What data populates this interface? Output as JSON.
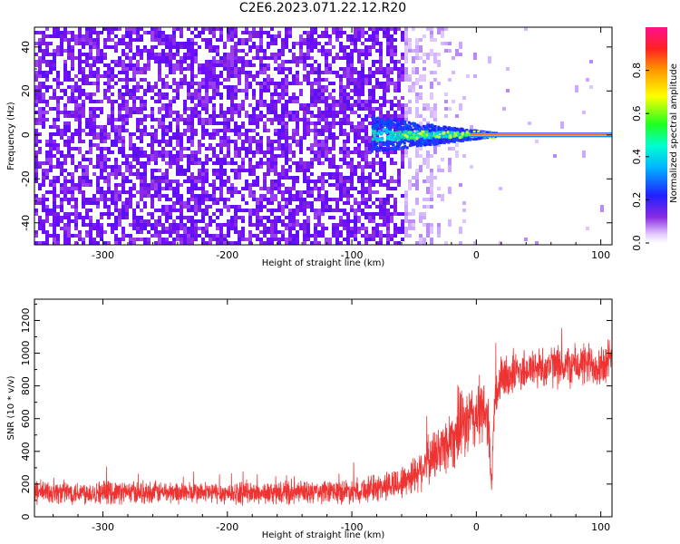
{
  "figure_title": "C2E6.2023.071.22.12.R20",
  "colors": {
    "snr_line": "#ee3333",
    "spectrogram_noise": "#7a1fe0",
    "carrier": "#e8f040"
  },
  "chart_data": [
    {
      "type": "heatmap",
      "title": "C2E6.2023.071.22.12.R20",
      "xlabel": "Height of straight line (km)",
      "ylabel": "Frequency (Hz)",
      "xlim": [
        -355,
        109
      ],
      "ylim": [
        -50,
        49
      ],
      "x_ticks": [
        -300,
        -200,
        -100,
        0,
        100
      ],
      "y_ticks": [
        -40,
        -20,
        0,
        20,
        40
      ],
      "carrier_frequency_hz": 0,
      "carrier_start_km": -80,
      "colorbar": {
        "label": "Normalized spectral amplitude",
        "range": [
          0.0,
          1.0
        ],
        "ticks": [
          "0.0",
          "0.2",
          "0.4",
          "0.6",
          "0.8"
        ],
        "colormap": "rainbow (white-violet-blue-cyan-green-yellow-orange-red-magenta)"
      },
      "grid": false
    },
    {
      "type": "line",
      "xlabel": "Height of straight line (km)",
      "ylabel": "SNR (10 * v/v)",
      "xlim": [
        -355,
        109
      ],
      "ylim": [
        0,
        1330
      ],
      "x_ticks": [
        -300,
        -200,
        -100,
        0,
        100
      ],
      "y_ticks": [
        0,
        200,
        400,
        600,
        800,
        1000,
        1200
      ],
      "series": [
        {
          "x": [
            -355,
            -300,
            -250,
            -200,
            -150,
            -120,
            -100,
            -80,
            -60,
            -50,
            -40,
            -30,
            -20,
            -10,
            0,
            5,
            10,
            12,
            15,
            20,
            30,
            40,
            50,
            60,
            70,
            80,
            90,
            100,
            109
          ],
          "y": [
            150,
            150,
            150,
            145,
            145,
            150,
            160,
            175,
            210,
            260,
            330,
            400,
            480,
            560,
            620,
            640,
            600,
            150,
            720,
            840,
            880,
            900,
            910,
            920,
            920,
            925,
            930,
            935,
            940
          ],
          "fluctuation": [
            85,
            85,
            80,
            80,
            80,
            85,
            90,
            100,
            120,
            140,
            170,
            200,
            230,
            250,
            260,
            240,
            200,
            100,
            180,
            170,
            160,
            150,
            150,
            150,
            150,
            155,
            160,
            170,
            180
          ]
        }
      ],
      "grid": false
    }
  ]
}
